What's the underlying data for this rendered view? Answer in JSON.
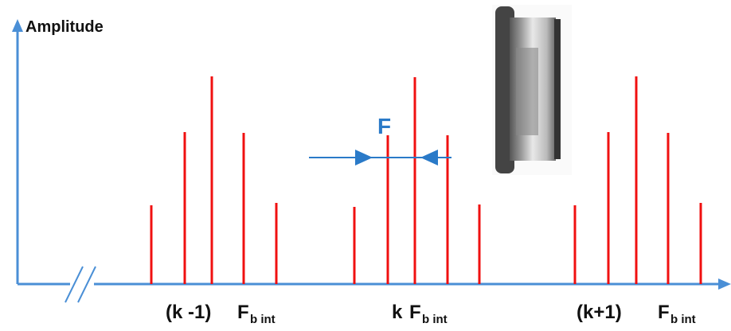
{
  "axis": {
    "y_label": "Amplitude"
  },
  "annotation": "F",
  "labels": [
    {
      "prefix": "(k -1)",
      "symbol": "F",
      "subscript": "b int"
    },
    {
      "prefix": "k",
      "symbol": "F",
      "subscript": "b int"
    },
    {
      "prefix": "(k+1)",
      "symbol": "F",
      "subscript": "b int"
    }
  ]
}
